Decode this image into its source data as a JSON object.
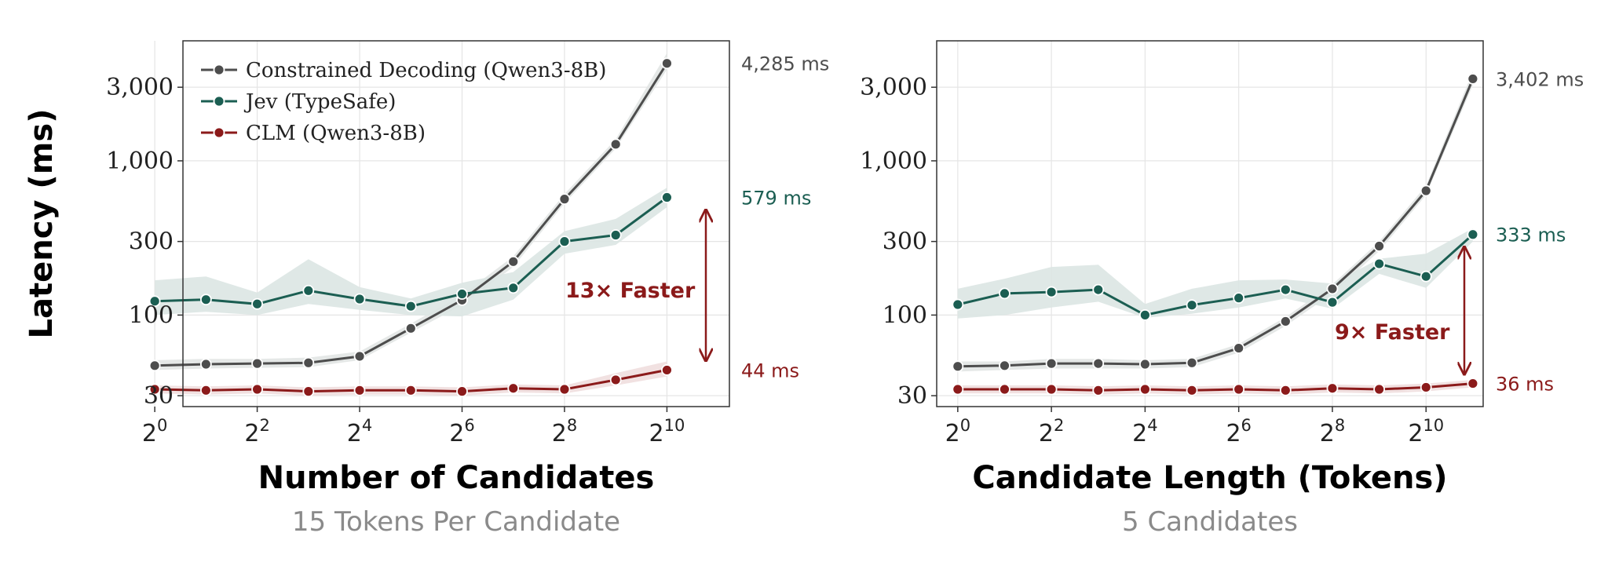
{
  "ylabel": "Latency (ms)",
  "colors": {
    "Constrained Decoding (Qwen3-8B)": "#4d4d4d",
    "Jev (TypeSafe)": "#1b5e52",
    "CLM (Qwen3-8B)": "#8b1a1a",
    "band_constrained": "#e2e5e4",
    "band_jev": "#dbe6e3",
    "band_clm": "#efdede",
    "subtitle": "#8a8a8a",
    "grid": "#e5e5e5"
  },
  "legend": [
    "Constrained Decoding (Qwen3-8B)",
    "Jev (TypeSafe)",
    "CLM (Qwen3-8B)"
  ],
  "chart_data": [
    {
      "type": "line",
      "xlabel": "Number of Candidates",
      "subtitle": "15 Tokens Per Candidate",
      "ylabel": "Latency (ms)",
      "xscale": "log2",
      "yscale": "log",
      "xlim": [
        0.55,
        11.22
      ],
      "ylim": [
        25.5,
        6000
      ],
      "x_exponents": [
        0,
        1,
        2,
        3,
        4,
        5,
        6,
        7,
        8,
        9,
        10
      ],
      "x_tick_exponents": [
        0,
        2,
        4,
        6,
        8,
        10
      ],
      "x_tick_base": "2",
      "y_ticks": [
        30,
        100,
        300,
        1000,
        3000
      ],
      "y_tick_labels": [
        "30",
        "100",
        "300",
        "1,000",
        "3,000"
      ],
      "grid": true,
      "legend_position": "top-left",
      "series": [
        {
          "name": "Constrained Decoding (Qwen3-8B)",
          "values": [
            47,
            48,
            48.5,
            49,
            54,
            82,
            125,
            222,
            565,
            1280,
            4285
          ],
          "band_lo": [
            44,
            45,
            45.5,
            46,
            51,
            77,
            116,
            205,
            530,
            1200,
            3900
          ],
          "band_hi": [
            51,
            52,
            52,
            53,
            58,
            88,
            135,
            240,
            610,
            1380,
            5000
          ]
        },
        {
          "name": "Jev (TypeSafe)",
          "values": [
            123,
            126,
            118,
            144,
            127,
            114,
            137,
            150,
            300,
            330,
            579
          ],
          "band_lo": [
            100,
            105,
            100,
            118,
            108,
            100,
            98,
            126,
            250,
            285,
            500
          ],
          "band_hi": [
            168,
            178,
            140,
            230,
            152,
            128,
            162,
            190,
            350,
            420,
            670
          ]
        },
        {
          "name": "CLM (Qwen3-8B)",
          "values": [
            33,
            32.5,
            33,
            32,
            32.5,
            32.5,
            32,
            33.5,
            33,
            38,
            44
          ],
          "band_lo": [
            31,
            30.5,
            31,
            30,
            30.5,
            30.5,
            30,
            31.5,
            31,
            35,
            40
          ],
          "band_hi": [
            35,
            34.5,
            35,
            34,
            34.5,
            34.5,
            34,
            35.5,
            35,
            42,
            50
          ]
        }
      ],
      "end_labels": [
        "4,285 ms",
        "579 ms",
        "44 ms"
      ],
      "annotation": {
        "text": "13× Faster",
        "x_exponent": 10,
        "from": 44,
        "to": 579
      }
    },
    {
      "type": "line",
      "xlabel": "Candidate Length (Tokens)",
      "subtitle": "5 Candidates",
      "ylabel": "Latency (ms)",
      "xscale": "log2",
      "yscale": "log",
      "xlim": [
        -0.45,
        11.22
      ],
      "ylim": [
        25.5,
        6000
      ],
      "x_exponents": [
        0,
        1,
        2,
        3,
        4,
        5,
        6,
        7,
        8,
        9,
        10,
        11
      ],
      "x_tick_exponents": [
        0,
        2,
        4,
        6,
        8,
        10
      ],
      "x_tick_base": "2",
      "y_ticks": [
        30,
        100,
        300,
        1000,
        3000
      ],
      "y_tick_labels": [
        "30",
        "100",
        "300",
        "1,000",
        "3,000"
      ],
      "grid": true,
      "series": [
        {
          "name": "Constrained Decoding (Qwen3-8B)",
          "values": [
            46.5,
            47,
            48.5,
            48.5,
            48,
            49,
            61,
            91,
            148,
            280,
            640,
            3402
          ],
          "band_lo": [
            43,
            44,
            45,
            45,
            45,
            46,
            57,
            85,
            138,
            260,
            600,
            3100
          ],
          "band_hi": [
            50,
            50,
            52,
            52,
            51,
            52,
            65,
            97,
            158,
            300,
            690,
            3800
          ]
        },
        {
          "name": "Jev (TypeSafe)",
          "values": [
            117,
            138,
            141,
            146,
            100,
            116,
            129,
            146,
            121,
            215,
            178,
            333
          ],
          "band_lo": [
            95,
            100,
            112,
            122,
            96,
            102,
            112,
            128,
            110,
            185,
            150,
            300
          ],
          "band_hi": [
            148,
            172,
            205,
            212,
            118,
            148,
            168,
            170,
            160,
            232,
            250,
            365
          ]
        },
        {
          "name": "CLM (Qwen3-8B)",
          "values": [
            33,
            33,
            33,
            32.5,
            33,
            32.5,
            33,
            32.5,
            33.5,
            33,
            34,
            36
          ],
          "band_lo": [
            31,
            31,
            31,
            30.5,
            31,
            30.5,
            31,
            30.5,
            31.5,
            31,
            32,
            34
          ],
          "band_hi": [
            35,
            35,
            35,
            34.5,
            35,
            34.5,
            35,
            34.5,
            35.5,
            35,
            36,
            38
          ]
        }
      ],
      "end_labels": [
        "3,402 ms",
        "333 ms",
        "36 ms"
      ],
      "annotation": {
        "text": "9× Faster",
        "x_exponent": 11,
        "from": 36,
        "to": 333
      }
    }
  ]
}
